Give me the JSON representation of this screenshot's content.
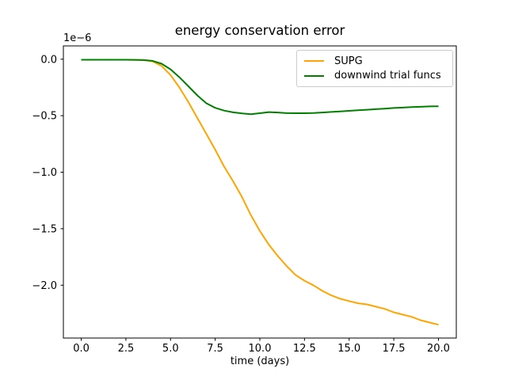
{
  "figure": {
    "background": "#ffffff",
    "spine_color": "#000000",
    "tick_color": "#000000"
  },
  "chart_data": {
    "type": "line",
    "title": "energy conservation error",
    "xlabel": "time (days)",
    "ylabel": "",
    "offset_label": "1e−6",
    "y_unit_factor": "1e-6",
    "grid": false,
    "legend_position": "upper right",
    "xlim": [
      -1,
      21
    ],
    "ylim": [
      -2.4675,
      0.1175
    ],
    "xticks": [
      0,
      2.5,
      5,
      7.5,
      10,
      12.5,
      15,
      17.5,
      20
    ],
    "xtick_labels": [
      "0.0",
      "2.5",
      "5.0",
      "7.5",
      "10.0",
      "12.5",
      "15.0",
      "17.5",
      "20.0"
    ],
    "yticks": [
      0,
      -0.5,
      -1.0,
      -1.5,
      -2.0
    ],
    "ytick_labels": [
      "0.0",
      "−0.5",
      "−1.0",
      "−1.5",
      "−2.0"
    ],
    "x": [
      0,
      0.5,
      1,
      1.5,
      2,
      2.5,
      3,
      3.5,
      4,
      4.5,
      5,
      5.5,
      6,
      6.5,
      7,
      7.5,
      8,
      8.5,
      9,
      9.5,
      10,
      10.5,
      11,
      11.5,
      12,
      12.5,
      13,
      13.5,
      14,
      14.5,
      15,
      15.5,
      16,
      16.5,
      17,
      17.5,
      18,
      18.5,
      19,
      19.5,
      20
    ],
    "series": [
      {
        "name": "SUPG",
        "color": "#ffa500",
        "values": [
          -0.005,
          -0.005,
          -0.005,
          -0.005,
          -0.005,
          -0.005,
          -0.006,
          -0.008,
          -0.02,
          -0.06,
          -0.14,
          -0.25,
          -0.38,
          -0.52,
          -0.66,
          -0.8,
          -0.95,
          -1.08,
          -1.22,
          -1.38,
          -1.52,
          -1.64,
          -1.74,
          -1.83,
          -1.91,
          -1.96,
          -2.0,
          -2.05,
          -2.09,
          -2.12,
          -2.14,
          -2.16,
          -2.17,
          -2.19,
          -2.21,
          -2.24,
          -2.26,
          -2.28,
          -2.31,
          -2.33,
          -2.35
        ]
      },
      {
        "name": "downwind trial funcs",
        "color": "#008000",
        "values": [
          -0.005,
          -0.005,
          -0.005,
          -0.005,
          -0.005,
          -0.005,
          -0.006,
          -0.008,
          -0.015,
          -0.04,
          -0.09,
          -0.16,
          -0.24,
          -0.32,
          -0.39,
          -0.43,
          -0.455,
          -0.47,
          -0.48,
          -0.487,
          -0.478,
          -0.468,
          -0.472,
          -0.477,
          -0.478,
          -0.478,
          -0.476,
          -0.472,
          -0.467,
          -0.462,
          -0.457,
          -0.452,
          -0.447,
          -0.442,
          -0.437,
          -0.432,
          -0.428,
          -0.424,
          -0.421,
          -0.418,
          -0.416
        ]
      }
    ]
  }
}
